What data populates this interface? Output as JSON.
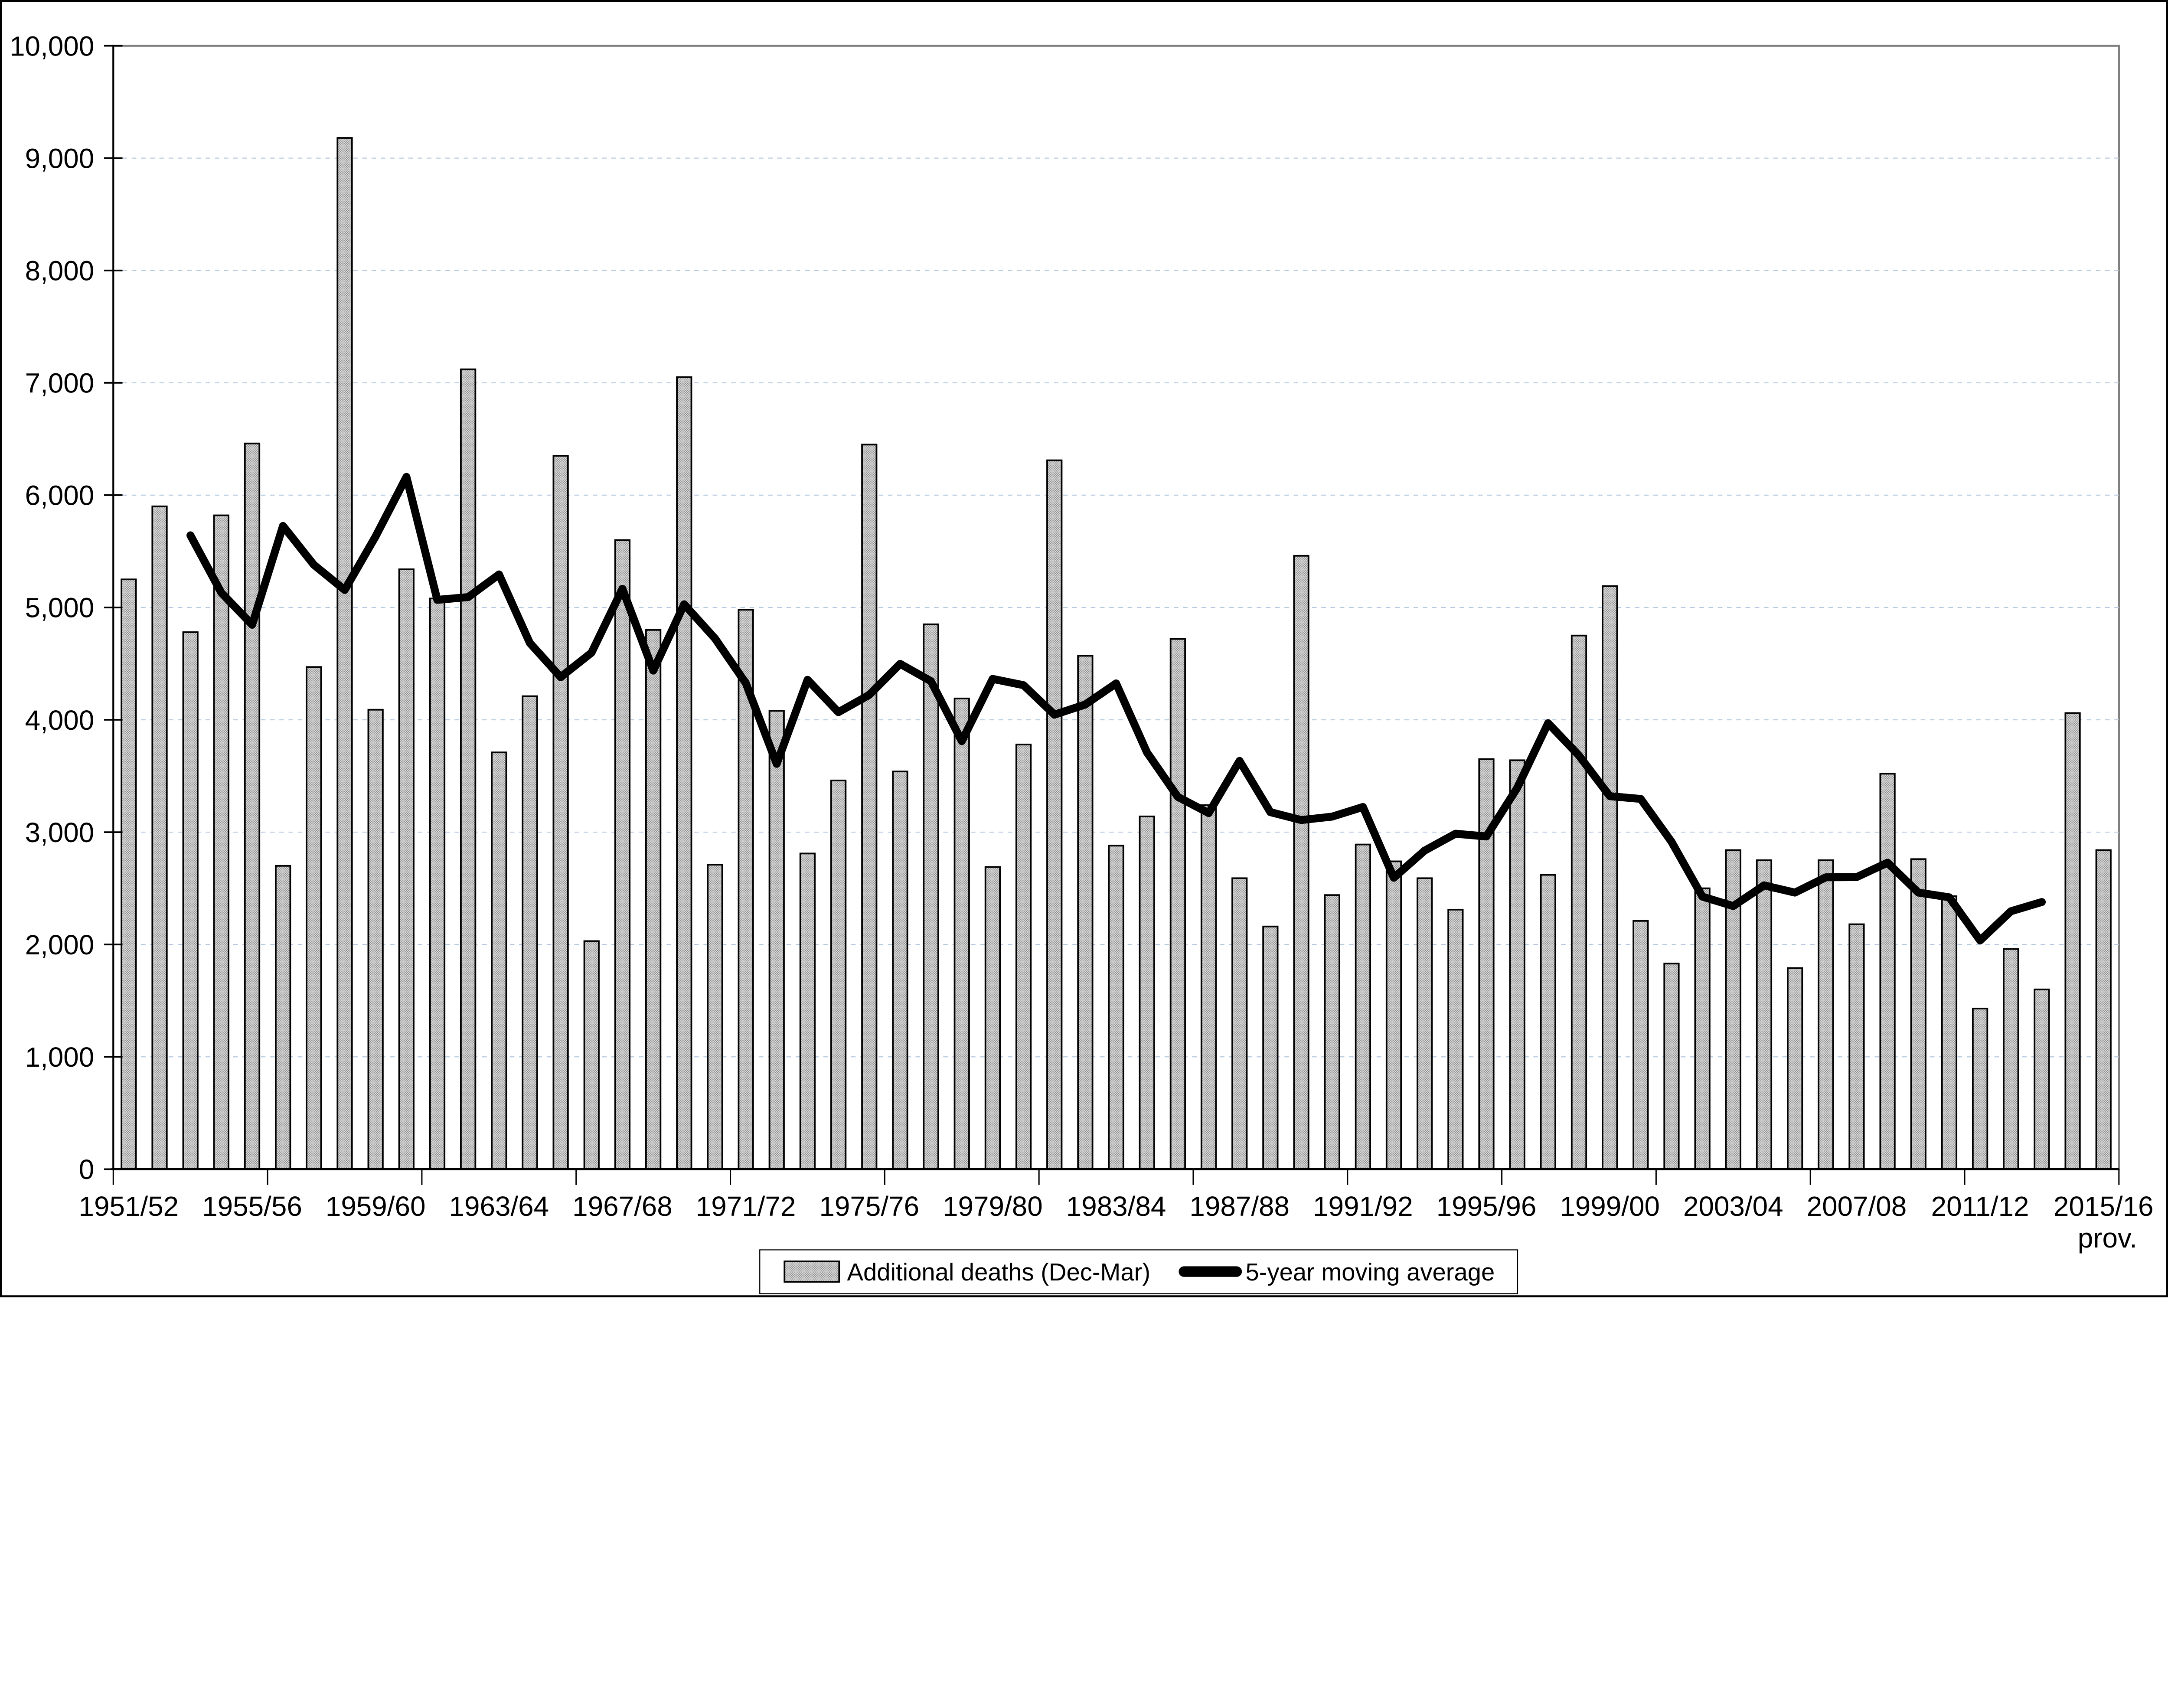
{
  "chart_data": {
    "type": "bar",
    "categories": [
      "1951/52",
      "1952/53",
      "1953/54",
      "1954/55",
      "1955/56",
      "1956/57",
      "1957/58",
      "1958/59",
      "1959/60",
      "1960/61",
      "1961/62",
      "1962/63",
      "1963/64",
      "1964/65",
      "1965/66",
      "1966/67",
      "1967/68",
      "1968/69",
      "1969/70",
      "1970/71",
      "1971/72",
      "1972/73",
      "1973/74",
      "1974/75",
      "1975/76",
      "1976/77",
      "1977/78",
      "1978/79",
      "1979/80",
      "1980/81",
      "1981/82",
      "1982/83",
      "1983/84",
      "1984/85",
      "1985/86",
      "1986/87",
      "1987/88",
      "1988/89",
      "1989/90",
      "1990/91",
      "1991/92",
      "1992/93",
      "1993/94",
      "1994/95",
      "1995/96",
      "1996/97",
      "1997/98",
      "1998/99",
      "1999/00",
      "2000/01",
      "2001/02",
      "2002/03",
      "2003/04",
      "2004/05",
      "2005/06",
      "2006/07",
      "2007/08",
      "2008/09",
      "2009/10",
      "2010/11",
      "2011/12",
      "2012/13",
      "2013/14",
      "2014/15",
      "2015/16"
    ],
    "series": [
      {
        "name": "Additional deaths (Dec-Mar)",
        "type": "bar",
        "values": [
          5250,
          5900,
          4780,
          5820,
          6460,
          2700,
          4470,
          9180,
          4090,
          5340,
          5080,
          7120,
          3710,
          4210,
          6350,
          2030,
          5600,
          4800,
          7050,
          2710,
          4980,
          4080,
          2810,
          3460,
          6450,
          3540,
          4850,
          4190,
          2690,
          3780,
          6310,
          4570,
          2880,
          3140,
          4720,
          3240,
          2590,
          2160,
          5460,
          2440,
          2890,
          2740,
          2590,
          2310,
          3650,
          3640,
          2620,
          4750,
          5190,
          2210,
          1830,
          2500,
          2840,
          2750,
          1790,
          2750,
          2180,
          3520,
          2760,
          2430,
          1430,
          1960,
          1600,
          4060,
          2840
        ]
      },
      {
        "name": "5-year moving average",
        "type": "line",
        "values": [
          null,
          null,
          5642,
          5132,
          4846,
          5726,
          5380,
          5156,
          5632,
          6162,
          5068,
          5092,
          5294,
          4684,
          4380,
          4598,
          5166,
          4438,
          5028,
          4724,
          4326,
          3608,
          4356,
          4068,
          4222,
          4498,
          4344,
          3810,
          4364,
          4308,
          4046,
          4136,
          4324,
          3710,
          3314,
          3170,
          3634,
          3178,
          3108,
          3138,
          3224,
          2594,
          2836,
          2986,
          2962,
          3394,
          3970,
          3682,
          3320,
          3296,
          2914,
          2426,
          2342,
          2526,
          2462,
          2598,
          2600,
          2728,
          2462,
          2420,
          2036,
          2296,
          2378,
          null,
          null
        ]
      }
    ],
    "x_tick_labels": [
      "1951/52",
      "1955/56",
      "1959/60",
      "1963/64",
      "1967/68",
      "1971/72",
      "1975/76",
      "1979/80",
      "1983/84",
      "1987/88",
      "1991/92",
      "1995/96",
      "1999/00",
      "2003/04",
      "2007/08",
      "2011/12",
      "2015/16"
    ],
    "x_last_label_suffix": "prov.",
    "y_axis": {
      "min": 0,
      "max": 10000,
      "step": 1000,
      "tick_labels": [
        "0",
        "1,000",
        "2,000",
        "3,000",
        "4,000",
        "5,000",
        "6,000",
        "7,000",
        "8,000",
        "9,000",
        "10,000"
      ]
    },
    "legend": [
      "Additional deaths (Dec-Mar)",
      "5-year moving average"
    ],
    "layout_hints": {
      "grid": "horizontal dashed",
      "legend_position": "bottom"
    },
    "colors": {
      "bar_fill_average": "#c6c6c6",
      "bar_fill_dot": "#878787",
      "bar_fill_bg": "#dedede",
      "bar_stroke": "#000000",
      "line": "#000000",
      "gridline": "#b8c9e0",
      "plot_border": "#808080",
      "axis": "#000000",
      "background": "#ffffff"
    }
  }
}
